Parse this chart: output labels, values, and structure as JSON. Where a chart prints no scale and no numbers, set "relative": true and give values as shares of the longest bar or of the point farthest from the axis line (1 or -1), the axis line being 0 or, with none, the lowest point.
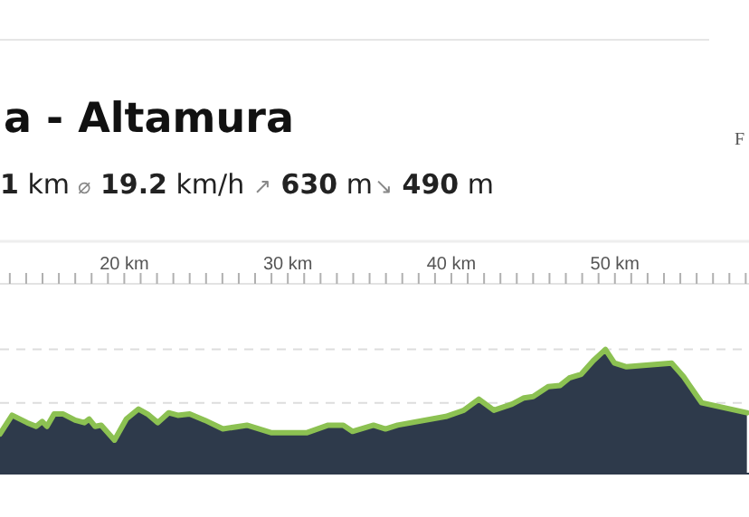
{
  "chart_data": {
    "type": "area",
    "title": "a - Altamura",
    "relative": true,
    "annotations": [
      "1 km",
      "⌀ 19.2 km/h",
      "↗ 630 m",
      "↘ 490 m",
      "F"
    ],
    "xlim": [
      12.4,
      58.2
    ],
    "xticks": [
      {
        "value": 20,
        "label": "20 km"
      },
      {
        "value": 30,
        "label": "30 km"
      },
      {
        "value": 40,
        "label": "40 km"
      },
      {
        "value": 50,
        "label": "50 km"
      }
    ],
    "ref_lines": [
      {
        "axis": "y",
        "value": 1.0,
        "color": "#dddddd",
        "line_style": "dashed"
      },
      {
        "axis": "y",
        "value": 0.57,
        "color": "#dddddd",
        "line_style": "dashed"
      }
    ],
    "x": [
      12.4,
      13.14,
      14.06,
      14.61,
      14.98,
      15.27,
      15.71,
      16.27,
      17.0,
      17.56,
      17.85,
      18.22,
      18.59,
      19.4,
      20.13,
      20.87,
      21.42,
      22.05,
      22.71,
      23.27,
      24.0,
      24.92,
      26.03,
      27.5,
      28.97,
      31.18,
      32.47,
      33.39,
      33.95,
      35.24,
      35.97,
      36.71,
      39.66,
      40.76,
      41.68,
      42.6,
      43.71,
      44.44,
      45.0,
      45.92,
      46.65,
      47.21,
      47.94,
      48.68,
      49.42,
      49.97,
      50.71,
      53.47,
      54.2,
      55.31,
      58.07
    ],
    "series": [
      {
        "color": "#8cc152",
        "values": [
          0.32,
          0.47,
          0.41,
          0.38,
          0.42,
          0.38,
          0.48,
          0.48,
          0.43,
          0.41,
          0.44,
          0.38,
          0.39,
          0.27,
          0.44,
          0.52,
          0.48,
          0.41,
          0.49,
          0.47,
          0.48,
          0.43,
          0.36,
          0.39,
          0.33,
          0.33,
          0.39,
          0.39,
          0.34,
          0.39,
          0.36,
          0.39,
          0.46,
          0.51,
          0.6,
          0.51,
          0.56,
          0.61,
          0.62,
          0.7,
          0.71,
          0.77,
          0.8,
          0.91,
          1.0,
          0.89,
          0.86,
          0.89,
          0.78,
          0.57,
          0.49
        ]
      }
    ]
  }
}
